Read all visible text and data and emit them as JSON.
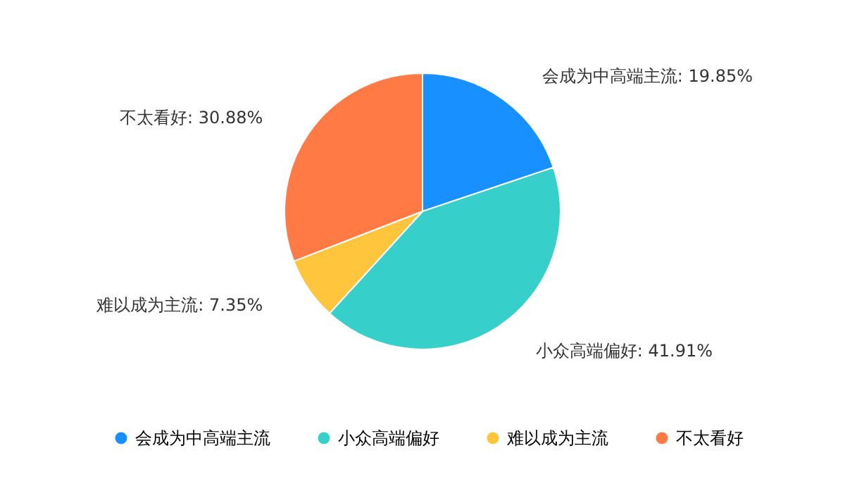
{
  "chart_data": {
    "type": "pie",
    "categories": [
      "会成为中高端主流",
      "小众高端偏好",
      "难以成为主流",
      "不太看好"
    ],
    "values": [
      19.85,
      41.91,
      7.35,
      30.88
    ],
    "value_labels": [
      "会成为中高端主流: 19.85%",
      "小众高端偏好: 41.91%",
      "难以成为主流: 7.35%",
      "不太看好: 30.88%"
    ],
    "colors": [
      "#1890ff",
      "#36cfc9",
      "#ffc53d",
      "#ff7a45"
    ],
    "legend": "bottom"
  }
}
